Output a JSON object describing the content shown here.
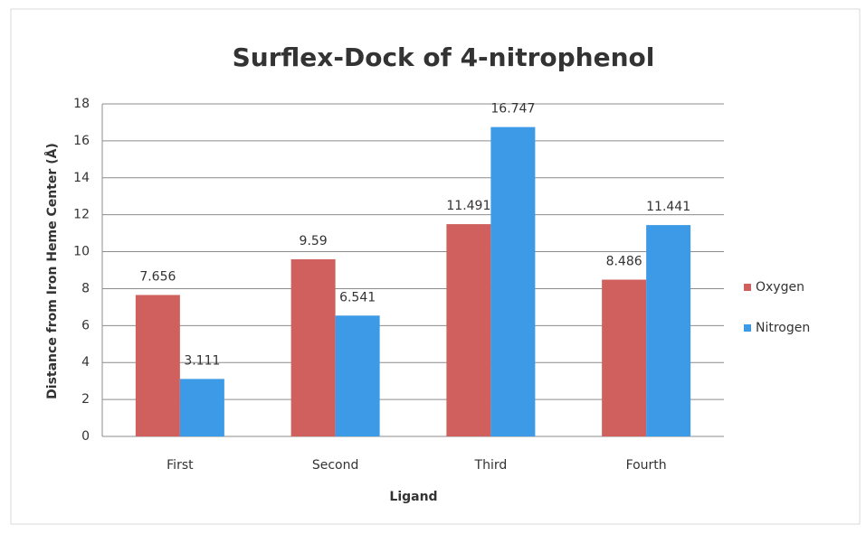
{
  "chart_data": {
    "type": "bar",
    "title": "Surflex-Dock of 4-nitrophenol",
    "xlabel": "Ligand",
    "ylabel": "Distance from Iron Heme Center (Å)",
    "categories": [
      "First",
      "Second",
      "Third",
      "Fourth"
    ],
    "series": [
      {
        "name": "Oxygen",
        "color": "#d0605e",
        "values": [
          7.656,
          9.59,
          11.491,
          8.486
        ]
      },
      {
        "name": "Nitrogen",
        "color": "#3d9ae6",
        "values": [
          3.111,
          6.541,
          16.747,
          11.441
        ]
      }
    ],
    "ylim": [
      0,
      18
    ],
    "yticks": [
      0,
      2,
      4,
      6,
      8,
      10,
      12,
      14,
      16,
      18
    ],
    "grid": true,
    "legend": "right"
  }
}
